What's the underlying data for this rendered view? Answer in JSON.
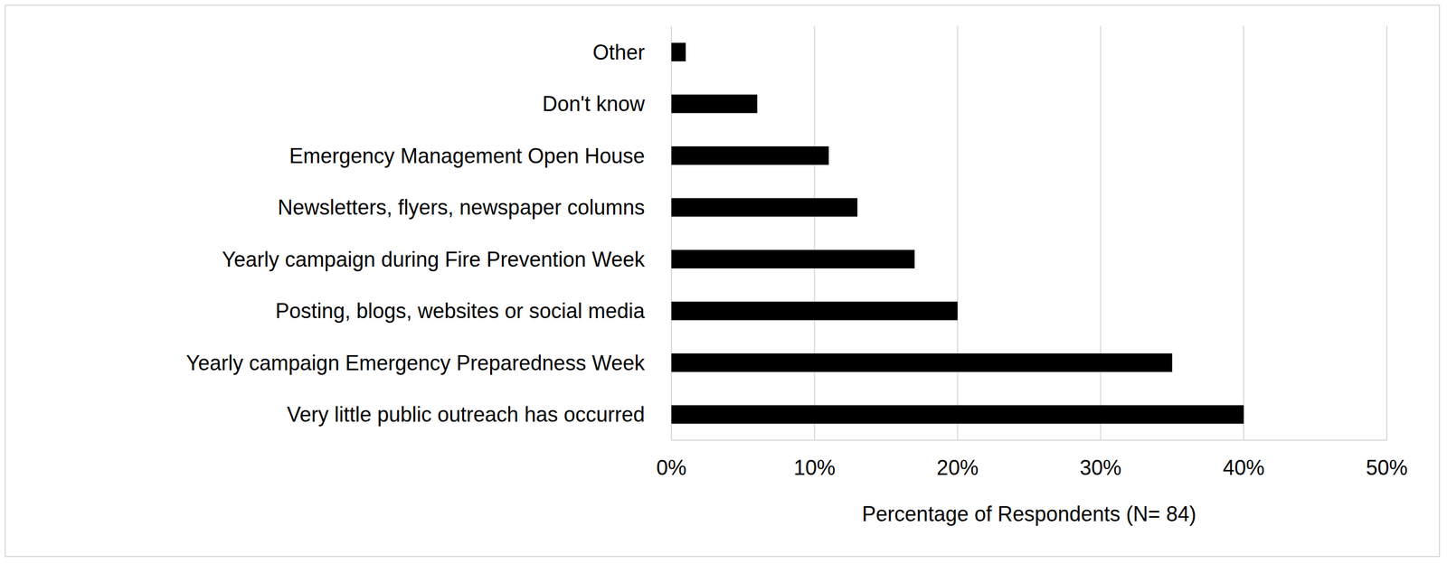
{
  "chart_data": {
    "type": "bar",
    "orientation": "horizontal",
    "categories": [
      "Other",
      "Don't know",
      "Emergency Management Open House",
      "Newsletters, flyers, newspaper columns",
      "Yearly campaign during Fire Prevention Week",
      "Posting, blogs, websites or social media",
      "Yearly campaign Emergency Preparedness Week",
      "Very little public outreach has occurred"
    ],
    "values": [
      1,
      6,
      11,
      13,
      17,
      20,
      35,
      40
    ],
    "color": "#000000",
    "xlabel": "Percentage of Respondents (N= 84)",
    "xlim": [
      0,
      50
    ],
    "xticks": [
      {
        "value": 0,
        "label": "0%"
      },
      {
        "value": 10,
        "label": "10%"
      },
      {
        "value": 20,
        "label": "20%"
      },
      {
        "value": 30,
        "label": "30%"
      },
      {
        "value": 40,
        "label": "40%"
      },
      {
        "value": 50,
        "label": "50%"
      }
    ],
    "grid": true,
    "data_labels": false
  }
}
